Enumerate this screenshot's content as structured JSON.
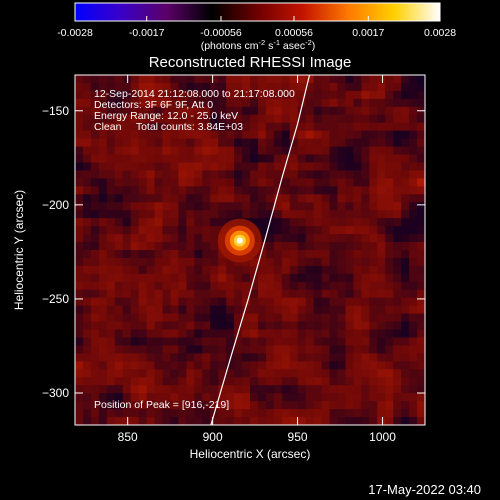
{
  "chart_data": {
    "type": "heatmap",
    "title": "Reconstructed RHESSI Image",
    "xlabel": "Heliocentric X (arcsec)",
    "ylabel": "Heliocentric Y (arcsec)",
    "xlim": [
      819,
      1025
    ],
    "ylim": [
      -317,
      -131
    ],
    "x_ticks": [
      850,
      900,
      950,
      1000
    ],
    "y_ticks": [
      -150,
      -200,
      -250,
      -300
    ],
    "colorbar": {
      "range": [
        -0.0028,
        0.0028
      ],
      "ticks": [
        "-0.0028",
        "-0.0017",
        "-0.00056",
        "0.00056",
        "0.0017",
        "0.0028"
      ],
      "tick_values": [
        -0.0028,
        -0.0017,
        -0.00056,
        0.00056,
        0.0017,
        0.0028
      ],
      "unit_base": "(photons cm",
      "unit_exp1": "-2",
      "unit_mid1": " s",
      "unit_exp2": "-1",
      "unit_mid2": " asec",
      "unit_exp3": "-2",
      "unit_end": ")",
      "colormap": [
        "#0000ff",
        "#3a00c8",
        "#5a0068",
        "#000000",
        "#6e0000",
        "#c41400",
        "#ff7a00",
        "#ffd000",
        "#ffffff"
      ]
    },
    "annotations": [
      "12-Sep-2014 21:12:08.000 to 21:17:08.000",
      "Detectors: 3F 6F 9F, Att 0",
      "Energy Range: 12.0 - 25.0 keV",
      "Clean     Total counts: 3.84E+03"
    ],
    "peak_label": "Position of Peak = [916,-219]",
    "peak": {
      "x": 916,
      "y": -219
    },
    "limb_curve": [
      [
        899,
        -317
      ],
      [
        911,
        -280
      ],
      [
        921,
        -250
      ],
      [
        931,
        -218
      ],
      [
        941,
        -185
      ],
      [
        950,
        -157
      ],
      [
        957,
        -131
      ]
    ]
  },
  "footer": {
    "timestamp": "17-May-2022 03:40"
  }
}
